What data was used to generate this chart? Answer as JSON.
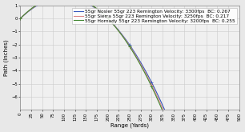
{
  "legend_entries": [
    "55gr Nosler 55gr 223 Remington Velocity: 3300fps  BC: 0.267",
    "55gr Sierra 55gr 223 Remington Velocity: 3250fps  BC: 0.217",
    "55gr Hornady 55gr 223 Remington Velocity: 3200fps  BC: 0.255"
  ],
  "line_colors": [
    "#3355bb",
    "#dd8888",
    "#448833"
  ],
  "xlabel": "Range (Yards)",
  "ylabel": "Path (Inches)",
  "xlim": [
    0,
    500
  ],
  "ylim": [
    -7,
    1
  ],
  "x_ticks": [
    0,
    25,
    50,
    75,
    100,
    125,
    150,
    175,
    200,
    225,
    250,
    275,
    300,
    325,
    350,
    375,
    400,
    425,
    450,
    475,
    500
  ],
  "y_ticks": [
    -6,
    -5,
    -4,
    -3,
    -2,
    -1,
    0,
    1
  ],
  "grid_color": "#cccccc",
  "background_color": "#e8e8e8",
  "plot_bg": "#f0f0f0",
  "legend_fontsize": 4.2,
  "axis_fontsize": 5,
  "tick_fontsize": 3.8,
  "zero_range_yards": 200
}
